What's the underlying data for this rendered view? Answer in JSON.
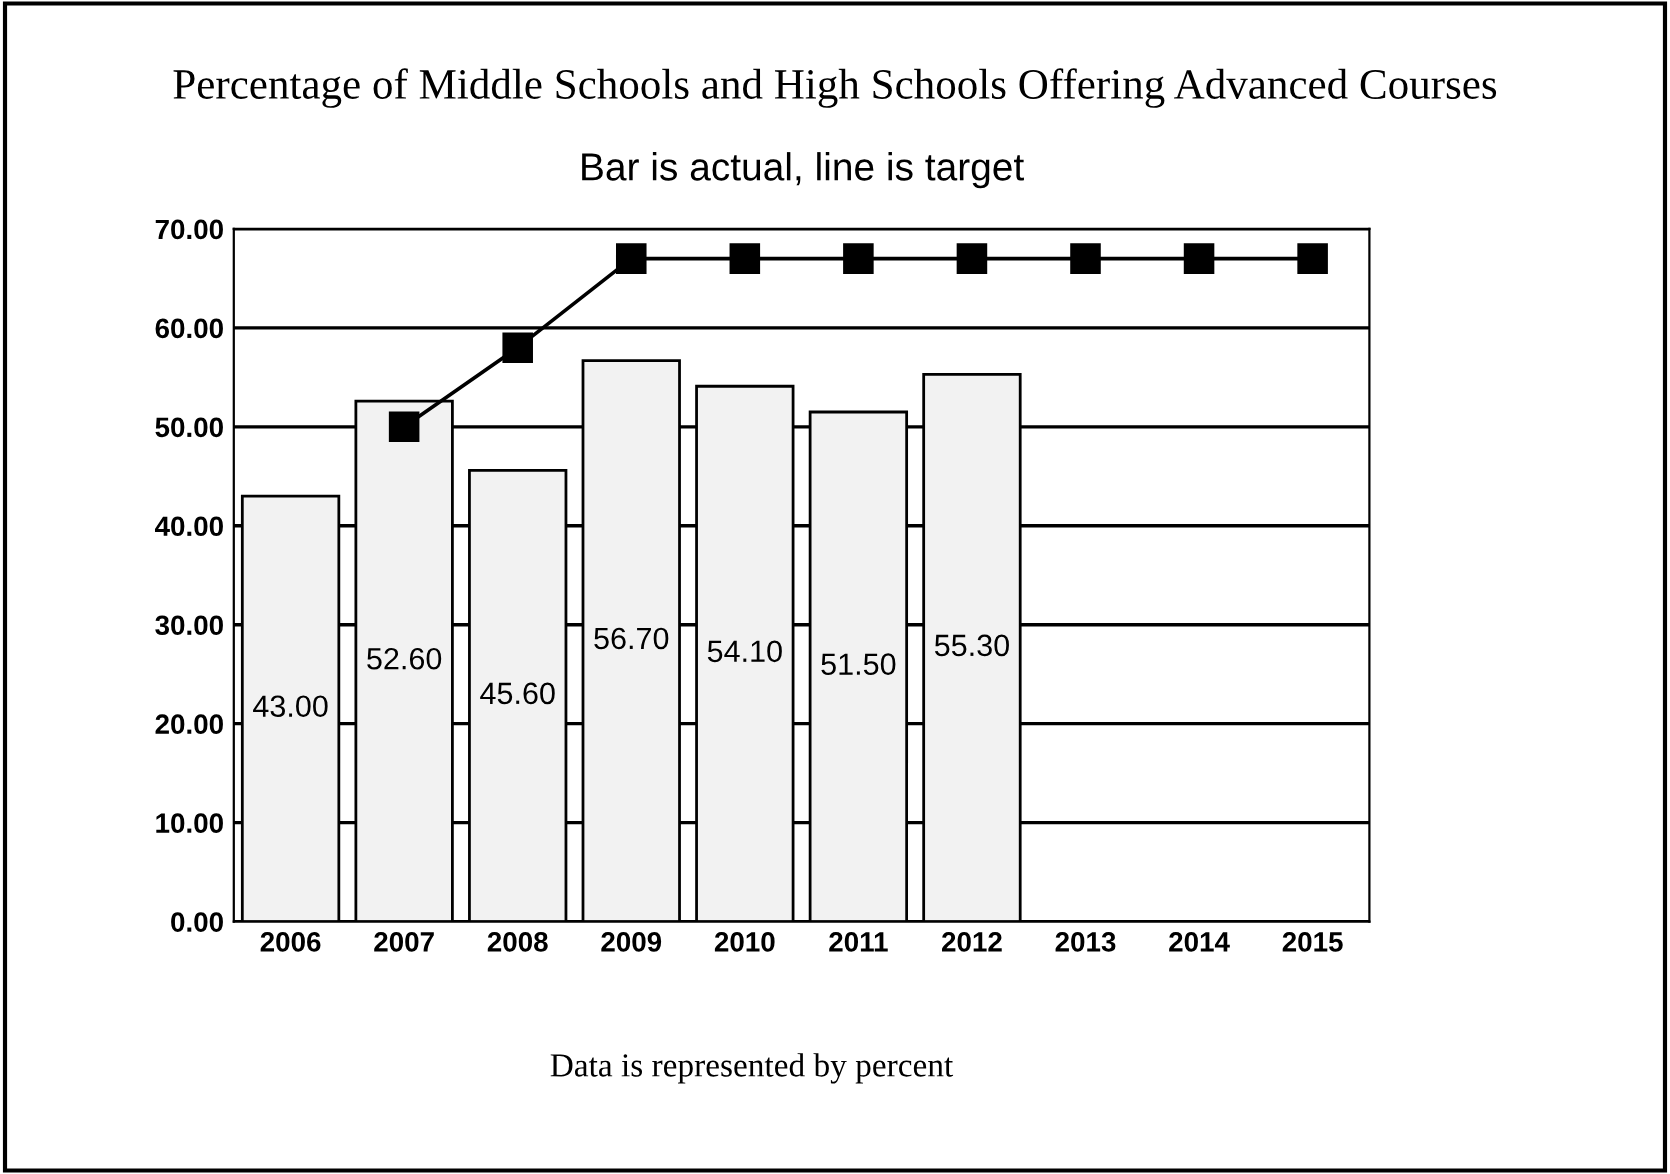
{
  "chart_data": {
    "type": "bar",
    "title": "Percentage of Middle Schools and High Schools Offering Advanced Courses",
    "subtitle": "Bar is actual, line is target",
    "categories": [
      "2006",
      "2007",
      "2008",
      "2009",
      "2010",
      "2011",
      "2012",
      "2013",
      "2014",
      "2015"
    ],
    "series": [
      {
        "color": "#f2f2f2",
        "values": [
          43.0,
          52.6,
          45.6,
          56.7,
          54.1,
          51.5,
          55.3,
          null,
          null,
          null
        ],
        "value_labels": [
          "43.00",
          "52.60",
          "45.60",
          "56.70",
          "54.10",
          "51.50",
          "55.30",
          null,
          null,
          null
        ]
      },
      {
        "type": "line",
        "color": "#000000",
        "marker": "square",
        "line_style": "solid",
        "values": [
          null,
          50,
          58,
          67,
          67,
          67,
          67,
          67,
          67,
          67
        ]
      }
    ],
    "ylim": [
      0,
      70
    ],
    "yticks": [
      {
        "value": 0,
        "label": "0.00"
      },
      {
        "value": 10,
        "label": "10.00"
      },
      {
        "value": 20,
        "label": "20.00"
      },
      {
        "value": 30,
        "label": "30.00"
      },
      {
        "value": 40,
        "label": "40.00"
      },
      {
        "value": 50,
        "label": "50.00"
      },
      {
        "value": 60,
        "label": "60.00"
      },
      {
        "value": 70,
        "label": "70.00"
      }
    ],
    "grid": "y",
    "legend": false,
    "annotations": [
      "Data is represented by percent"
    ]
  }
}
